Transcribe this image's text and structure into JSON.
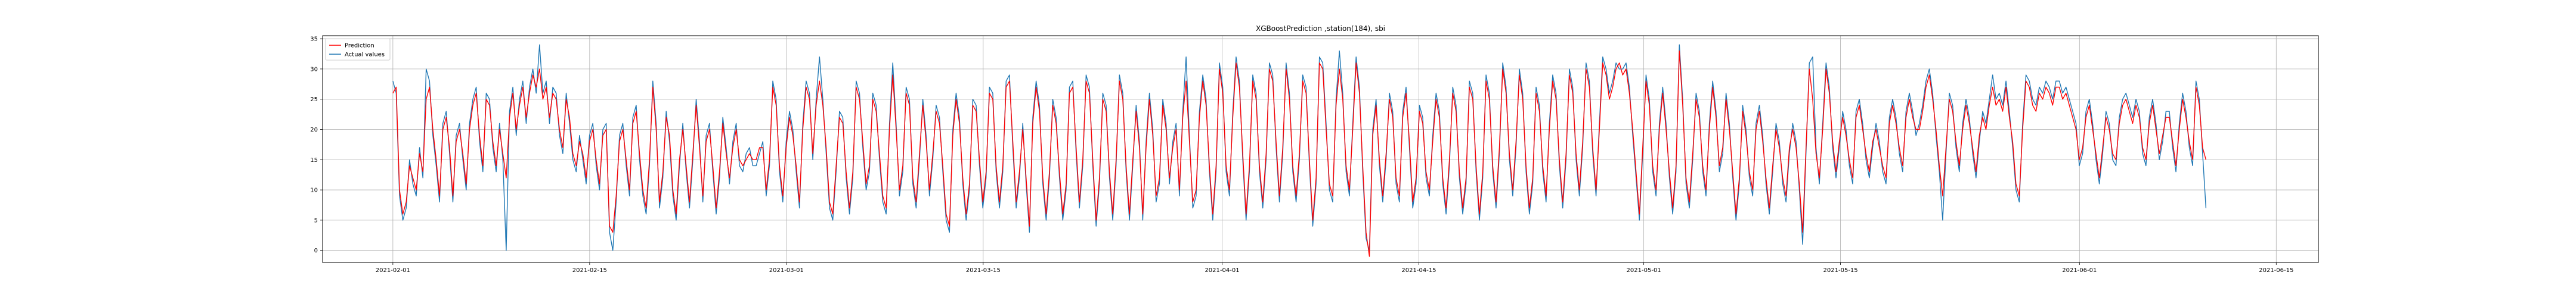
{
  "chart_data": {
    "type": "line",
    "title": "XGBoostPrediction ,station(184), sbi",
    "xlabel": "",
    "ylabel": "",
    "x_start": "2021-02-01",
    "x_end": "2021-06-10",
    "xlim": [
      "2021-01-27",
      "2021-06-18"
    ],
    "ylim": [
      -2,
      35.5
    ],
    "x_ticks": [
      "2021-02-01",
      "2021-02-15",
      "2021-03-01",
      "2021-03-15",
      "2021-04-01",
      "2021-04-15",
      "2021-05-01",
      "2021-05-15",
      "2021-06-01",
      "2021-06-15"
    ],
    "y_ticks": [
      0,
      5,
      10,
      15,
      20,
      25,
      30,
      35
    ],
    "grid": true,
    "legend": "top-left",
    "series": [
      {
        "name": "Prediction",
        "color": "#ff0000",
        "values": [
          26,
          27,
          10,
          6,
          8,
          14,
          12,
          10,
          16,
          13,
          25,
          27,
          20,
          15,
          9,
          20,
          22,
          17,
          9,
          18,
          20,
          16,
          11,
          20,
          24,
          26,
          19,
          14,
          25,
          24,
          18,
          14,
          20,
          16,
          12,
          22,
          26,
          20,
          24,
          27,
          22,
          26,
          29,
          27,
          30,
          25,
          27,
          22,
          26,
          25,
          20,
          17,
          25,
          22,
          16,
          14,
          18,
          16,
          12,
          18,
          20,
          15,
          11,
          19,
          20,
          4,
          3,
          9,
          18,
          20,
          15,
          10,
          21,
          23,
          16,
          10,
          7,
          15,
          27,
          20,
          8,
          13,
          22,
          19,
          10,
          6,
          15,
          20,
          14,
          8,
          16,
          24,
          17,
          9,
          18,
          20,
          14,
          7,
          13,
          21,
          16,
          12,
          17,
          20,
          15,
          14,
          15,
          16,
          15,
          15,
          17,
          17,
          10,
          15,
          27,
          24,
          14,
          9,
          17,
          22,
          19,
          14,
          8,
          20,
          27,
          25,
          16,
          24,
          28,
          24,
          17,
          8,
          6,
          14,
          22,
          21,
          13,
          7,
          13,
          27,
          25,
          18,
          11,
          14,
          25,
          23,
          16,
          9,
          7,
          20,
          29,
          20,
          10,
          14,
          26,
          24,
          12,
          8,
          16,
          24,
          18,
          10,
          16,
          23,
          21,
          14,
          6,
          4,
          19,
          25,
          21,
          12,
          6,
          11,
          24,
          23,
          15,
          8,
          13,
          26,
          25,
          14,
          8,
          14,
          27,
          28,
          18,
          8,
          13,
          20,
          12,
          4,
          21,
          27,
          23,
          12,
          6,
          13,
          24,
          21,
          13,
          6,
          11,
          26,
          27,
          17,
          8,
          15,
          28,
          26,
          15,
          5,
          12,
          25,
          23,
          13,
          6,
          15,
          28,
          25,
          14,
          6,
          15,
          23,
          17,
          6,
          17,
          25,
          19,
          9,
          12,
          24,
          20,
          12,
          17,
          20,
          10,
          22,
          28,
          18,
          8,
          10,
          22,
          28,
          24,
          14,
          6,
          14,
          30,
          26,
          14,
          10,
          22,
          31,
          27,
          16,
          6,
          14,
          28,
          25,
          14,
          8,
          16,
          30,
          28,
          18,
          9,
          17,
          30,
          25,
          14,
          9,
          16,
          28,
          26,
          15,
          5,
          12,
          31,
          30,
          20,
          11,
          9,
          24,
          30,
          25,
          14,
          10,
          20,
          31,
          26,
          14,
          3,
          -1,
          19,
          24,
          15,
          9,
          16,
          25,
          22,
          12,
          9,
          22,
          26,
          18,
          8,
          12,
          23,
          21,
          13,
          10,
          18,
          25,
          22,
          12,
          7,
          15,
          26,
          23,
          13,
          7,
          12,
          27,
          25,
          14,
          6,
          13,
          28,
          25,
          14,
          8,
          17,
          30,
          26,
          16,
          10,
          18,
          29,
          25,
          14,
          7,
          12,
          26,
          23,
          14,
          9,
          20,
          28,
          25,
          15,
          8,
          16,
          29,
          26,
          16,
          10,
          18,
          30,
          27,
          17,
          10,
          20,
          31,
          29,
          25,
          27,
          30,
          31,
          29,
          30,
          26,
          20,
          13,
          6,
          17,
          28,
          24,
          14,
          10,
          20,
          26,
          20,
          13,
          7,
          14,
          33,
          24,
          12,
          8,
          16,
          25,
          22,
          14,
          10,
          20,
          27,
          22,
          14,
          17,
          25,
          20,
          13,
          6,
          12,
          23,
          19,
          13,
          10,
          20,
          23,
          18,
          12,
          7,
          14,
          20,
          17,
          12,
          9,
          17,
          20,
          17,
          11,
          3,
          17,
          30,
          25,
          16,
          12,
          20,
          30,
          26,
          18,
          13,
          18,
          22,
          19,
          15,
          12,
          22,
          24,
          20,
          16,
          13,
          18,
          20,
          17,
          14,
          12,
          21,
          24,
          21,
          17,
          14,
          22,
          25,
          22,
          20,
          20,
          23,
          27,
          29,
          25,
          20,
          14,
          9,
          17,
          25,
          23,
          18,
          14,
          20,
          24,
          21,
          17,
          13,
          19,
          22,
          20,
          24,
          27,
          24,
          25,
          23,
          27,
          22,
          18,
          11,
          9,
          20,
          28,
          27,
          24,
          23,
          26,
          25,
          27,
          26,
          24,
          27,
          27,
          25,
          26,
          24,
          22,
          20,
          15,
          17,
          22,
          24,
          20,
          16,
          12,
          17,
          22,
          20,
          16,
          15,
          21,
          24,
          25,
          23,
          21,
          24,
          22,
          17,
          15,
          21,
          24,
          20,
          16,
          19,
          22,
          22,
          18,
          14,
          20,
          25,
          22,
          18,
          15,
          27,
          24,
          17,
          15
        ]
      },
      {
        "name": "Actual values",
        "color": "#1f77b4",
        "values": [
          28,
          26,
          9,
          5,
          7,
          15,
          11,
          9,
          17,
          12,
          30,
          28,
          19,
          14,
          8,
          21,
          23,
          16,
          8,
          19,
          21,
          15,
          10,
          21,
          25,
          27,
          18,
          13,
          26,
          25,
          17,
          13,
          21,
          15,
          0,
          23,
          27,
          19,
          25,
          28,
          21,
          27,
          30,
          26,
          34,
          26,
          28,
          21,
          27,
          26,
          19,
          16,
          26,
          21,
          15,
          13,
          19,
          15,
          11,
          19,
          21,
          14,
          10,
          20,
          21,
          3,
          0,
          8,
          19,
          21,
          14,
          9,
          22,
          24,
          15,
          9,
          6,
          14,
          28,
          21,
          7,
          12,
          23,
          18,
          9,
          5,
          14,
          21,
          13,
          7,
          15,
          25,
          18,
          8,
          19,
          21,
          13,
          6,
          12,
          22,
          17,
          11,
          18,
          21,
          14,
          13,
          16,
          17,
          14,
          14,
          16,
          18,
          9,
          14,
          28,
          25,
          13,
          8,
          18,
          23,
          20,
          13,
          7,
          21,
          28,
          26,
          15,
          25,
          32,
          25,
          16,
          7,
          5,
          13,
          23,
          22,
          12,
          6,
          12,
          28,
          26,
          17,
          10,
          13,
          26,
          24,
          15,
          8,
          6,
          21,
          31,
          21,
          9,
          13,
          27,
          25,
          11,
          7,
          15,
          25,
          19,
          9,
          15,
          24,
          22,
          13,
          5,
          3,
          20,
          26,
          22,
          11,
          5,
          10,
          25,
          24,
          14,
          7,
          12,
          27,
          26,
          13,
          7,
          13,
          28,
          29,
          17,
          7,
          12,
          21,
          11,
          3,
          22,
          28,
          24,
          11,
          5,
          12,
          25,
          22,
          12,
          5,
          10,
          27,
          28,
          16,
          7,
          14,
          29,
          27,
          14,
          4,
          11,
          26,
          24,
          12,
          5,
          14,
          29,
          26,
          13,
          5,
          14,
          24,
          18,
          5,
          18,
          26,
          20,
          8,
          11,
          25,
          21,
          11,
          18,
          21,
          9,
          23,
          32,
          19,
          7,
          9,
          23,
          29,
          25,
          13,
          5,
          13,
          31,
          27,
          13,
          9,
          23,
          32,
          28,
          15,
          5,
          13,
          29,
          26,
          13,
          7,
          15,
          31,
          29,
          17,
          8,
          16,
          31,
          26,
          13,
          8,
          15,
          29,
          27,
          14,
          4,
          11,
          32,
          31,
          21,
          10,
          8,
          25,
          33,
          26,
          13,
          9,
          21,
          32,
          27,
          13,
          2,
          0,
          20,
          25,
          14,
          8,
          15,
          26,
          23,
          11,
          8,
          23,
          27,
          17,
          7,
          11,
          24,
          22,
          12,
          9,
          19,
          26,
          23,
          11,
          6,
          14,
          27,
          24,
          12,
          6,
          11,
          28,
          26,
          13,
          5,
          12,
          29,
          26,
          13,
          7,
          16,
          31,
          27,
          15,
          9,
          17,
          30,
          26,
          13,
          6,
          11,
          27,
          24,
          13,
          8,
          21,
          29,
          26,
          14,
          7,
          15,
          30,
          27,
          15,
          9,
          17,
          31,
          28,
          16,
          9,
          21,
          32,
          30,
          26,
          28,
          31,
          30,
          30,
          31,
          27,
          19,
          12,
          5,
          16,
          29,
          25,
          13,
          9,
          21,
          27,
          21,
          12,
          6,
          13,
          34,
          25,
          11,
          7,
          15,
          26,
          23,
          13,
          9,
          21,
          28,
          23,
          13,
          16,
          26,
          21,
          12,
          5,
          11,
          24,
          20,
          12,
          9,
          21,
          24,
          19,
          11,
          6,
          13,
          21,
          18,
          11,
          8,
          16,
          21,
          18,
          10,
          1,
          16,
          31,
          32,
          17,
          11,
          21,
          31,
          27,
          17,
          12,
          17,
          23,
          20,
          14,
          11,
          23,
          25,
          21,
          15,
          12,
          17,
          21,
          18,
          13,
          11,
          22,
          25,
          22,
          16,
          13,
          23,
          26,
          23,
          19,
          21,
          24,
          28,
          30,
          26,
          19,
          13,
          5,
          16,
          26,
          24,
          17,
          13,
          21,
          25,
          22,
          16,
          12,
          18,
          23,
          21,
          25,
          29,
          25,
          26,
          24,
          28,
          23,
          17,
          10,
          8,
          21,
          29,
          28,
          25,
          24,
          27,
          26,
          28,
          27,
          25,
          28,
          28,
          26,
          27,
          25,
          23,
          21,
          14,
          16,
          23,
          25,
          21,
          15,
          11,
          16,
          23,
          21,
          15,
          14,
          22,
          25,
          26,
          24,
          22,
          25,
          23,
          16,
          14,
          22,
          25,
          21,
          15,
          18,
          23,
          23,
          17,
          13,
          21,
          26,
          23,
          17,
          14,
          28,
          25,
          16,
          7
        ]
      }
    ]
  }
}
